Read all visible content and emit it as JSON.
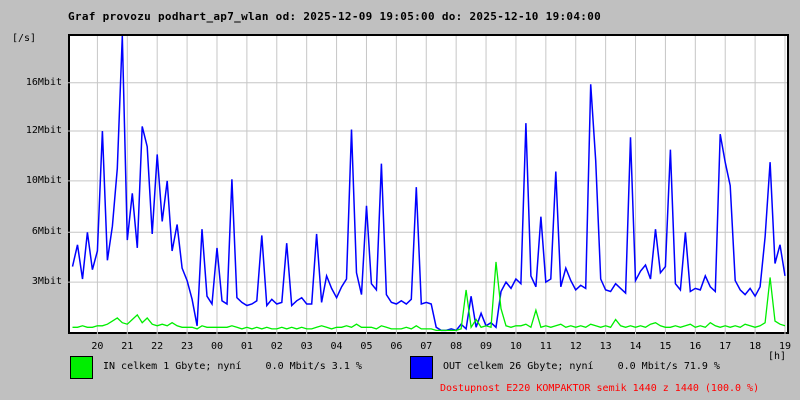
{
  "title": "Graf provozu podhart_ap7_wlan od: 2025-12-09 19:05:00 do: 2025-12-10 19:04:00",
  "y_axis_unit": "[/s]",
  "x_axis_unit": "[h]",
  "legend": {
    "in": {
      "label": "IN celkem 1 Gbyte; nyní    0.0 Mbit/s 3.1 %",
      "color": "#00ee00"
    },
    "out": {
      "label": "OUT celkem 26 Gbyte; nyní    0.0 Mbit/s 71.9 %",
      "color": "#0000ff"
    }
  },
  "availability": {
    "text": "Dostupnost E220 KOMPAKTOR semik 1440 z 1440 (100.0 %)",
    "color": "#ff0000"
  },
  "colors": {
    "background": "#c0c0c0",
    "plot_background": "#ffffff",
    "grid": "#c6c6c6",
    "frame": "#000000"
  },
  "chart_data": {
    "type": "line",
    "title": "Graf provozu podhart_ap7_wlan od: 2025-12-09 19:05:00 do: 2025-12-10 19:04:00",
    "xlabel": "[h]",
    "ylabel": "[/s]",
    "x_start": "2025-12-09 19:05:00",
    "x_end": "2025-12-10 19:04:00",
    "x_start_hour": 19.0833,
    "x_span_hours": 23.9833,
    "sample_minutes": 10,
    "ylim": [
      0,
      19.0
    ],
    "grid": true,
    "legend_position": "bottom",
    "y_ticks": [
      {
        "value": 16.0,
        "label": "16Mbit"
      },
      {
        "value": 12.9,
        "label": "12Mbit"
      },
      {
        "value": 9.7,
        "label": "10Mbit"
      },
      {
        "value": 6.4,
        "label": "6Mbit"
      },
      {
        "value": 3.2,
        "label": "3Mbit"
      }
    ],
    "x_tick_labels": [
      "20",
      "21",
      "22",
      "23",
      "00",
      "01",
      "02",
      "03",
      "04",
      "05",
      "06",
      "07",
      "08",
      "09",
      "10",
      "11",
      "12",
      "13",
      "14",
      "15",
      "16",
      "17",
      "18",
      "19"
    ],
    "series": [
      {
        "name": "OUT",
        "color": "#0000ff",
        "values": [
          4.2,
          5.6,
          3.4,
          6.4,
          4.0,
          5.2,
          12.9,
          4.6,
          6.8,
          10.5,
          19.5,
          5.9,
          8.9,
          5.4,
          13.2,
          11.9,
          6.3,
          11.4,
          7.1,
          9.7,
          5.2,
          6.9,
          4.1,
          3.3,
          2.1,
          0.4,
          6.6,
          2.3,
          1.8,
          5.4,
          2.0,
          1.8,
          9.8,
          2.2,
          1.9,
          1.7,
          1.8,
          2.0,
          6.2,
          1.7,
          2.1,
          1.8,
          1.9,
          5.7,
          1.7,
          2.0,
          2.2,
          1.8,
          1.8,
          6.3,
          1.9,
          3.6,
          2.8,
          2.2,
          2.9,
          3.4,
          13.0,
          3.8,
          2.4,
          8.1,
          3.1,
          2.7,
          10.8,
          2.4,
          1.9,
          1.8,
          2.0,
          1.8,
          2.1,
          9.3,
          1.8,
          1.9,
          1.8,
          0.3,
          0.1,
          0.1,
          0.2,
          0.1,
          0.5,
          0.2,
          2.3,
          0.3,
          1.2,
          0.4,
          0.6,
          0.3,
          2.6,
          3.2,
          2.8,
          3.4,
          3.1,
          13.4,
          3.6,
          2.9,
          7.4,
          3.2,
          3.4,
          10.3,
          2.9,
          4.1,
          3.3,
          2.7,
          3.0,
          2.8,
          15.9,
          11.0,
          3.4,
          2.7,
          2.6,
          3.1,
          2.8,
          2.5,
          12.5,
          3.3,
          3.9,
          4.3,
          3.4,
          6.6,
          3.8,
          4.2,
          11.7,
          3.1,
          2.7,
          6.4,
          2.6,
          2.8,
          2.7,
          3.6,
          2.9,
          2.6,
          12.7,
          10.9,
          9.4,
          3.3,
          2.7,
          2.4,
          2.8,
          2.3,
          2.9,
          6.1,
          10.9,
          4.4,
          5.6,
          3.6
        ]
      },
      {
        "name": "IN",
        "color": "#00ee00",
        "values": [
          0.3,
          0.3,
          0.4,
          0.3,
          0.3,
          0.4,
          0.4,
          0.5,
          0.7,
          0.9,
          0.6,
          0.5,
          0.8,
          1.1,
          0.6,
          0.9,
          0.5,
          0.4,
          0.5,
          0.4,
          0.6,
          0.4,
          0.3,
          0.3,
          0.3,
          0.2,
          0.4,
          0.3,
          0.3,
          0.3,
          0.3,
          0.3,
          0.4,
          0.3,
          0.2,
          0.3,
          0.2,
          0.3,
          0.2,
          0.3,
          0.2,
          0.2,
          0.3,
          0.2,
          0.3,
          0.2,
          0.3,
          0.2,
          0.2,
          0.3,
          0.4,
          0.3,
          0.2,
          0.3,
          0.3,
          0.4,
          0.3,
          0.5,
          0.3,
          0.3,
          0.3,
          0.2,
          0.4,
          0.3,
          0.2,
          0.2,
          0.2,
          0.3,
          0.2,
          0.4,
          0.2,
          0.2,
          0.2,
          0.1,
          0.1,
          0.1,
          0.1,
          0.1,
          0.2,
          2.7,
          0.3,
          0.8,
          0.3,
          0.4,
          0.3,
          4.5,
          1.5,
          0.4,
          0.3,
          0.4,
          0.4,
          0.5,
          0.3,
          1.4,
          0.3,
          0.4,
          0.3,
          0.4,
          0.5,
          0.3,
          0.4,
          0.3,
          0.4,
          0.3,
          0.5,
          0.4,
          0.3,
          0.4,
          0.3,
          0.8,
          0.4,
          0.3,
          0.4,
          0.3,
          0.4,
          0.3,
          0.5,
          0.6,
          0.4,
          0.3,
          0.3,
          0.4,
          0.3,
          0.4,
          0.5,
          0.3,
          0.4,
          0.3,
          0.6,
          0.4,
          0.3,
          0.4,
          0.3,
          0.4,
          0.3,
          0.5,
          0.4,
          0.3,
          0.4,
          0.6,
          3.5,
          0.7,
          0.5,
          0.4
        ]
      }
    ]
  }
}
